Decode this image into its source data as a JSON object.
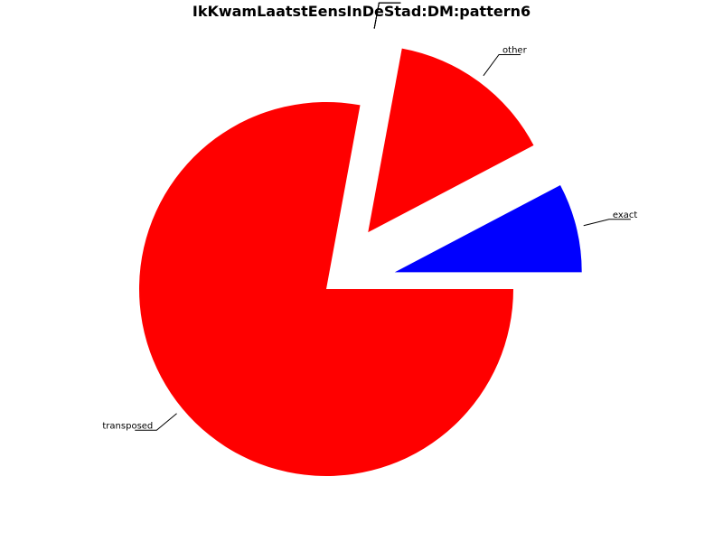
{
  "chart_data": {
    "type": "pie",
    "title": "IkKwamLaatstEensInDeStad:DM:pattern6",
    "slices": [
      {
        "label": "exact",
        "value": 7.7,
        "color": "#0000ff",
        "explode": true
      },
      {
        "label": "other",
        "value": 14.4,
        "color": "#ff0000",
        "explode": true
      },
      {
        "label": "",
        "value": 0,
        "color": "#ff0000",
        "explode": true
      },
      {
        "label": "",
        "value": 0,
        "color": "#ff0000",
        "explode": true
      },
      {
        "label": "",
        "value": 0,
        "color": "#ff0000",
        "explode": true
      },
      {
        "label": "",
        "value": 0,
        "color": "#ff0000",
        "explode": true
      },
      {
        "label": "transposed",
        "value": 77.9,
        "color": "#ff0000",
        "explode": false
      }
    ],
    "legend": false,
    "grid": false
  }
}
